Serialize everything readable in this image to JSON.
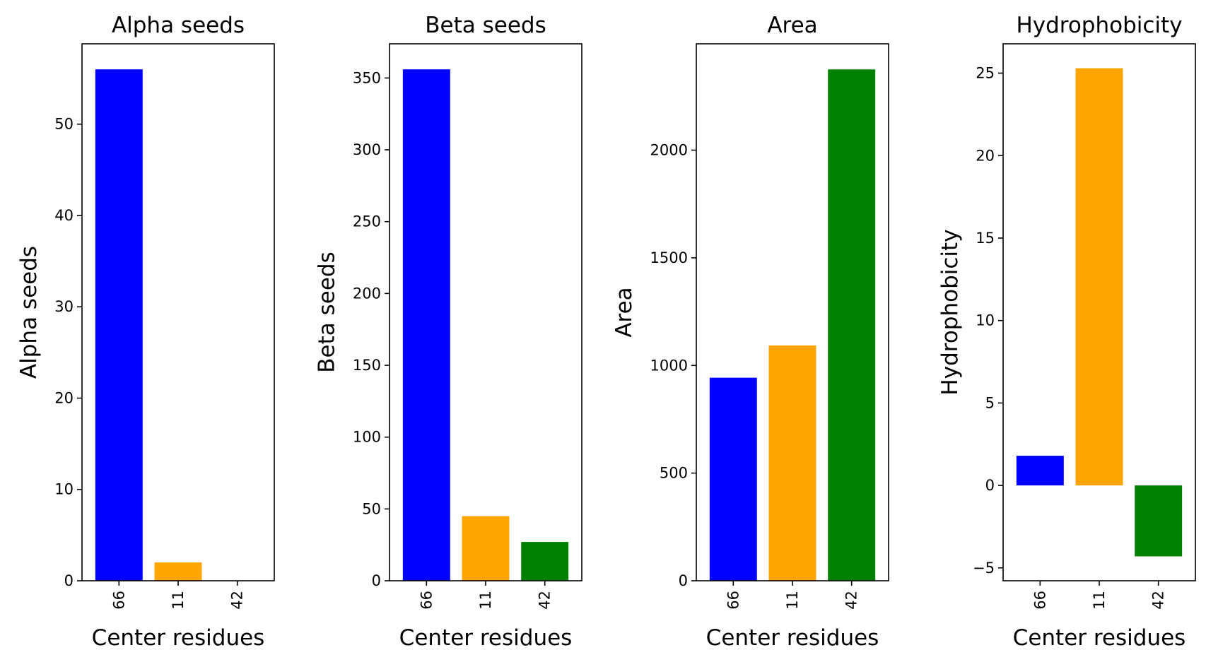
{
  "chart_data": [
    {
      "type": "bar",
      "title": "Alpha seeds",
      "xlabel": "Center residues",
      "ylabel": "Alpha seeds",
      "categories": [
        "66",
        "11",
        "42"
      ],
      "values": [
        56,
        2,
        0
      ],
      "colors": [
        "#0000ff",
        "#ffa500",
        "#008000"
      ],
      "ylim": [
        0,
        58.8
      ],
      "yticks": [
        0,
        10,
        20,
        30,
        40,
        50
      ],
      "grid": false
    },
    {
      "type": "bar",
      "title": "Beta seeds",
      "xlabel": "Center residues",
      "ylabel": "Beta seeds",
      "categories": [
        "66",
        "11",
        "42"
      ],
      "values": [
        356,
        45,
        27
      ],
      "colors": [
        "#0000ff",
        "#ffa500",
        "#008000"
      ],
      "ylim": [
        0,
        373.8
      ],
      "yticks": [
        0,
        50,
        100,
        150,
        200,
        250,
        300,
        350
      ],
      "grid": false
    },
    {
      "type": "bar",
      "title": "Area",
      "xlabel": "Center residues",
      "ylabel": "Area",
      "categories": [
        "66",
        "11",
        "42"
      ],
      "values": [
        943,
        1093,
        2375
      ],
      "colors": [
        "#0000ff",
        "#ffa500",
        "#008000"
      ],
      "ylim": [
        0,
        2494
      ],
      "yticks": [
        0,
        500,
        1000,
        1500,
        2000
      ],
      "grid": false
    },
    {
      "type": "bar",
      "title": "Hydrophobicity",
      "xlabel": "Center residues",
      "ylabel": "Hydrophobicity",
      "categories": [
        "66",
        "11",
        "42"
      ],
      "values": [
        1.8,
        25.3,
        -4.3
      ],
      "colors": [
        "#0000ff",
        "#ffa500",
        "#008000"
      ],
      "ylim": [
        -5.78,
        26.78
      ],
      "yticks": [
        -5,
        0,
        5,
        10,
        15,
        20,
        25
      ],
      "grid": false
    }
  ]
}
